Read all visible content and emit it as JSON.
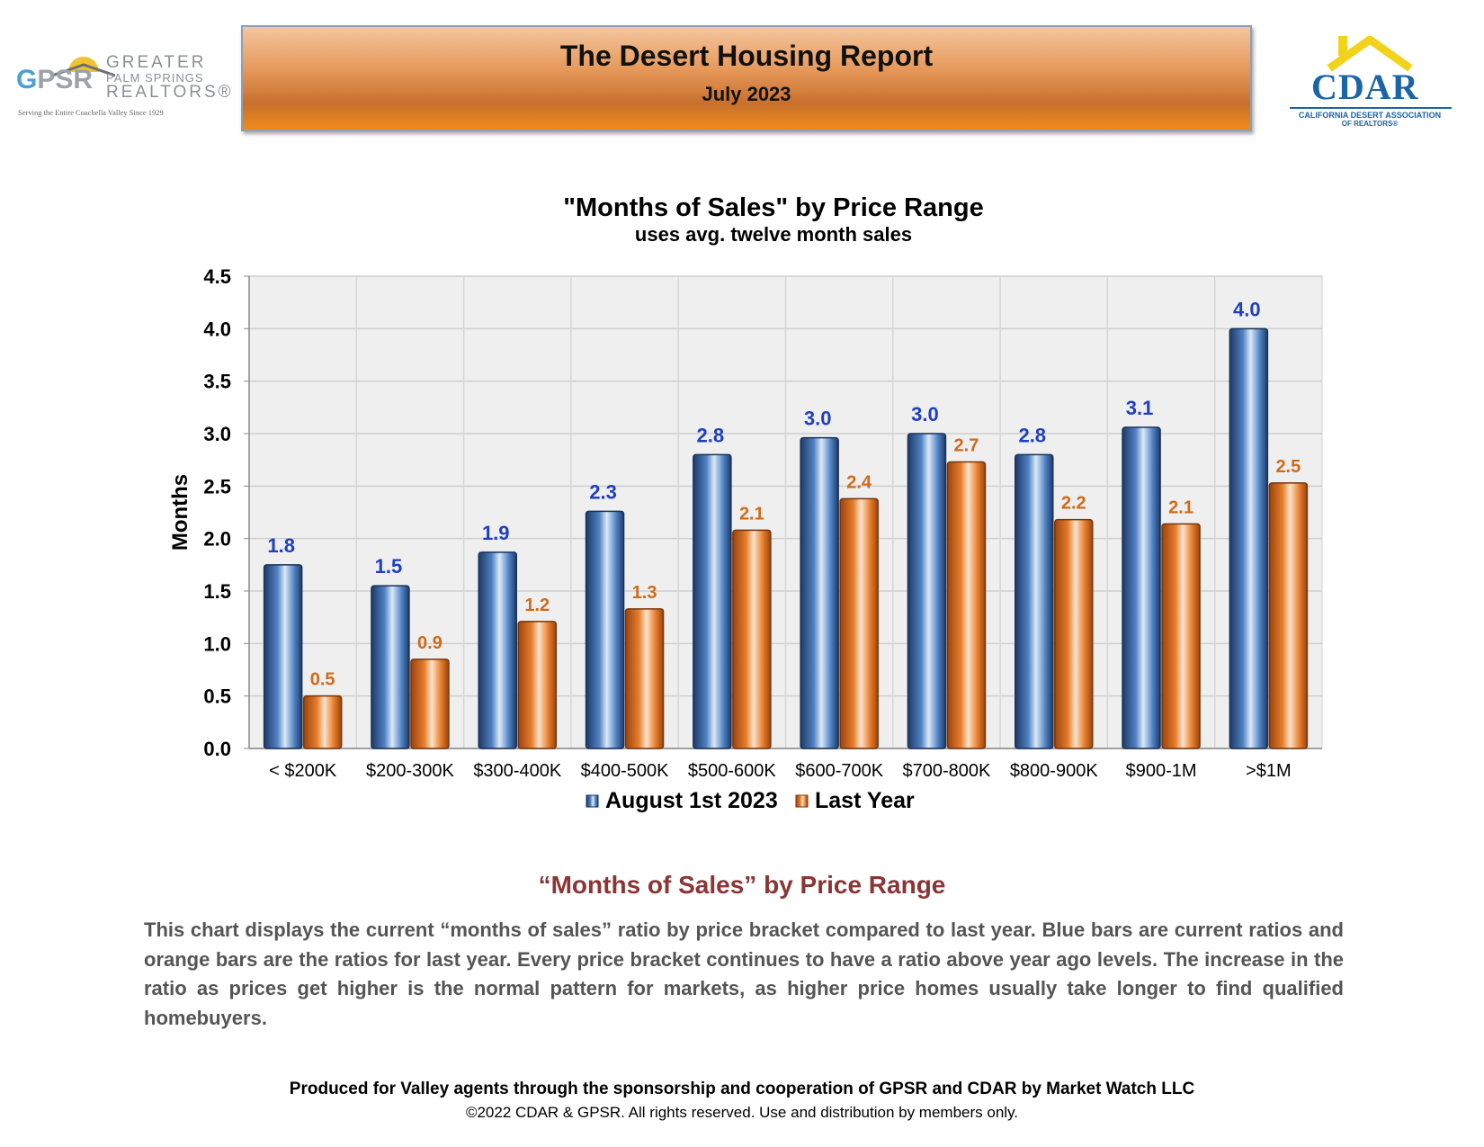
{
  "header": {
    "title": "The Desert Housing Report",
    "subtitle": "July 2023",
    "gpsr_logo": {
      "mark_g": "G",
      "mark_psr": "PSR",
      "line1": "GREATER",
      "line2": "PALM SPRINGS",
      "line3": "REALTORS®",
      "tagline": "Serving the Entire Coachella Valley Since 1929"
    },
    "cdar_logo": {
      "mark": "CDAR",
      "line1": "CALIFORNIA DESERT ASSOCIATION",
      "line2": "OF REALTORS®"
    }
  },
  "chart_data": {
    "type": "bar",
    "title": "\"Months of Sales\" by Price Range",
    "subtitle": "uses avg. twelve month sales",
    "xlabel": "",
    "ylabel": "Months",
    "ylim": [
      0,
      4.5
    ],
    "yticks": [
      "0.0",
      "0.5",
      "1.0",
      "1.5",
      "2.0",
      "2.5",
      "3.0",
      "3.5",
      "4.0",
      "4.5"
    ],
    "categories": [
      "< $200K",
      "$200-300K",
      "$300-400K",
      "$400-500K",
      "$500-600K",
      "$600-700K",
      "$700-800K",
      "$800-900K",
      "$900-1M",
      ">$1M"
    ],
    "series": [
      {
        "name": "August 1st 2023",
        "values": [
          1.75,
          1.55,
          1.87,
          2.26,
          2.8,
          2.96,
          3.0,
          2.8,
          3.06,
          4.0
        ],
        "labels": [
          "1.8",
          "1.5",
          "1.9",
          "2.3",
          "2.8",
          "3.0",
          "3.0",
          "2.8",
          "3.1",
          "4.0"
        ],
        "color": "#2f5a96",
        "label_color": "#1f3fbf"
      },
      {
        "name": "Last Year",
        "values": [
          0.5,
          0.85,
          1.21,
          1.33,
          2.08,
          2.38,
          2.73,
          2.18,
          2.14,
          2.53
        ],
        "labels": [
          "0.5",
          "0.9",
          "1.2",
          "1.3",
          "2.1",
          "2.4",
          "2.7",
          "2.2",
          "2.1",
          "2.5"
        ],
        "color": "#d96a1c",
        "label_color": "#d06a1a"
      }
    ],
    "grid": true,
    "legend": "bottom"
  },
  "section": {
    "heading": "“Months of Sales” by Price Range",
    "body": "This chart displays the current “months of sales” ratio by price bracket compared to last year. Blue bars are current ratios and orange bars are the ratios for last year. Every price bracket continues to have a ratio above year ago levels. The increase in the ratio as prices get higher is the normal pattern for markets, as higher price homes usually take longer to find qualified homebuyers."
  },
  "footer": {
    "line1": "Produced for Valley agents through the sponsorship and cooperation of GPSR and CDAR by Market Watch LLC",
    "line2": "©2022 CDAR & GPSR.  All rights reserved.  Use and distribution by members only."
  }
}
